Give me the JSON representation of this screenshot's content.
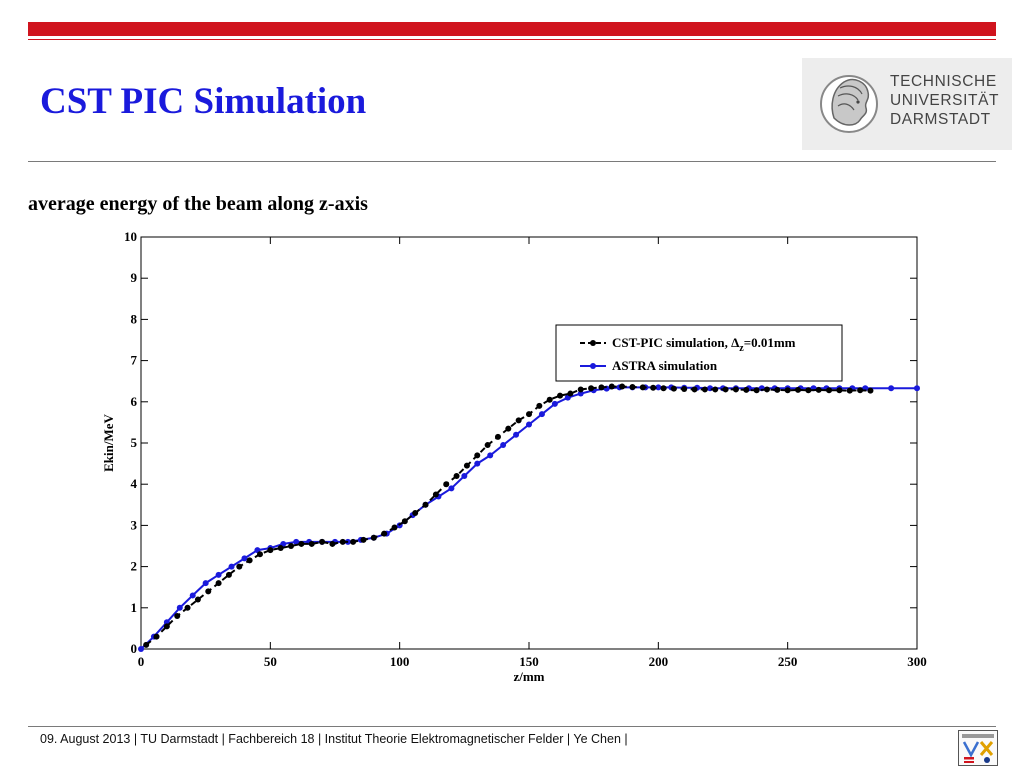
{
  "slide": {
    "title": "CST PIC Simulation",
    "subtitle": "average energy of the beam along z-axis",
    "footer": "09. August 2013  |  TU Darmstadt  |  Fachbereich 18  |  Institut Theorie Elektromagnetischer Felder  |  Ye Chen |",
    "logo_lines": [
      "TECHNISCHE",
      "UNIVERSITÄT",
      "DARMSTADT"
    ],
    "logo_icon": "athena-head-icon",
    "footer_logo_icon": "temf-logo-icon",
    "brand_color": "#d0141e",
    "title_color": "#1a1adc"
  },
  "chart_data": {
    "type": "line",
    "title": "",
    "xlabel": "z/mm",
    "ylabel": "Ekin/MeV",
    "xlim": [
      0,
      300
    ],
    "ylim": [
      0,
      10
    ],
    "xticks": [
      0,
      50,
      100,
      150,
      200,
      250,
      300
    ],
    "yticks": [
      0,
      1,
      2,
      3,
      4,
      5,
      6,
      7,
      8,
      9,
      10
    ],
    "grid": false,
    "legend_position": "right",
    "series": [
      {
        "name": "CST-PIC simulation, Δz=0.01mm",
        "legend_main": "CST-PIC simulation, ",
        "legend_delta": "Δ",
        "legend_sub": "z",
        "legend_tail": "=0.01mm",
        "color": "#000000",
        "style": "dashed",
        "x": [
          2,
          6,
          10,
          14,
          18,
          22,
          26,
          30,
          34,
          38,
          42,
          46,
          50,
          54,
          58,
          62,
          66,
          70,
          74,
          78,
          82,
          86,
          90,
          94,
          98,
          102,
          106,
          110,
          114,
          118,
          122,
          126,
          130,
          134,
          138,
          142,
          146,
          150,
          154,
          158,
          162,
          166,
          170,
          174,
          178,
          182,
          186,
          190,
          194,
          198,
          202,
          206,
          210,
          214,
          218,
          222,
          226,
          230,
          234,
          238,
          242,
          246,
          250,
          254,
          258,
          262,
          266,
          270,
          274,
          278,
          282
        ],
        "y": [
          0.1,
          0.3,
          0.55,
          0.8,
          1.0,
          1.2,
          1.4,
          1.6,
          1.8,
          2.0,
          2.15,
          2.3,
          2.4,
          2.45,
          2.5,
          2.55,
          2.55,
          2.6,
          2.55,
          2.6,
          2.6,
          2.65,
          2.7,
          2.8,
          2.95,
          3.1,
          3.3,
          3.5,
          3.75,
          4.0,
          4.2,
          4.45,
          4.7,
          4.95,
          5.15,
          5.35,
          5.55,
          5.7,
          5.9,
          6.05,
          6.15,
          6.2,
          6.3,
          6.33,
          6.35,
          6.37,
          6.37,
          6.36,
          6.35,
          6.34,
          6.33,
          6.32,
          6.31,
          6.3,
          6.3,
          6.3,
          6.3,
          6.3,
          6.29,
          6.28,
          6.3,
          6.29,
          6.28,
          6.29,
          6.28,
          6.29,
          6.28,
          6.28,
          6.27,
          6.28,
          6.27
        ]
      },
      {
        "name": "ASTRA simulation",
        "color": "#1a1adc",
        "style": "solid",
        "x": [
          0,
          5,
          10,
          15,
          20,
          25,
          30,
          35,
          40,
          45,
          50,
          55,
          60,
          65,
          70,
          75,
          80,
          85,
          90,
          95,
          100,
          105,
          110,
          115,
          120,
          125,
          130,
          135,
          140,
          145,
          150,
          155,
          160,
          165,
          170,
          175,
          180,
          185,
          190,
          195,
          200,
          205,
          210,
          215,
          220,
          225,
          230,
          235,
          240,
          245,
          250,
          255,
          260,
          265,
          270,
          275,
          280,
          290,
          300
        ],
        "y": [
          0.0,
          0.3,
          0.65,
          1.0,
          1.3,
          1.6,
          1.8,
          2.0,
          2.2,
          2.4,
          2.45,
          2.55,
          2.6,
          2.6,
          2.6,
          2.6,
          2.6,
          2.65,
          2.7,
          2.8,
          3.0,
          3.25,
          3.5,
          3.7,
          3.9,
          4.2,
          4.5,
          4.7,
          4.95,
          5.2,
          5.45,
          5.7,
          5.95,
          6.1,
          6.2,
          6.28,
          6.32,
          6.35,
          6.35,
          6.35,
          6.35,
          6.35,
          6.34,
          6.34,
          6.33,
          6.33,
          6.33,
          6.33,
          6.33,
          6.33,
          6.33,
          6.33,
          6.33,
          6.33,
          6.33,
          6.33,
          6.33,
          6.33,
          6.33
        ]
      }
    ]
  }
}
